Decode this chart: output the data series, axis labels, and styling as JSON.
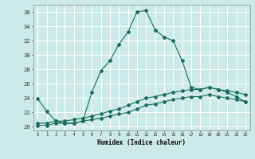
{
  "xlabel": "Humidex (Indice chaleur)",
  "background_color": "#cceae8",
  "grid_color": "#ffffff",
  "line_color": "#1a6b5a",
  "xlim": [
    -0.5,
    23.5
  ],
  "ylim": [
    19.5,
    37.0
  ],
  "yticks": [
    20,
    22,
    24,
    26,
    28,
    30,
    32,
    34,
    36
  ],
  "xticks": [
    0,
    1,
    2,
    3,
    4,
    5,
    6,
    7,
    8,
    9,
    10,
    11,
    12,
    13,
    14,
    15,
    16,
    17,
    18,
    19,
    20,
    21,
    22,
    23
  ],
  "series1_x": [
    0,
    1,
    2,
    3,
    4,
    5,
    6,
    7,
    8,
    9,
    10,
    11,
    12,
    13,
    14,
    15,
    16,
    17,
    18,
    19,
    20,
    21,
    22,
    23
  ],
  "series1_y": [
    23.9,
    22.2,
    20.8,
    20.5,
    20.5,
    20.8,
    24.8,
    27.8,
    29.2,
    31.5,
    33.2,
    36.0,
    36.2,
    33.5,
    32.5,
    32.0,
    29.2,
    25.5,
    25.2,
    25.5,
    25.2,
    24.8,
    24.2,
    23.5
  ],
  "series2_x": [
    0,
    1,
    2,
    3,
    4,
    5,
    6,
    7,
    8,
    9,
    10,
    11,
    12,
    13,
    14,
    15,
    16,
    17,
    18,
    19,
    20,
    21,
    22,
    23
  ],
  "series2_y": [
    20.5,
    20.5,
    20.8,
    20.8,
    21.0,
    21.2,
    21.5,
    21.8,
    22.2,
    22.5,
    23.0,
    23.5,
    24.0,
    24.2,
    24.5,
    24.8,
    25.0,
    25.2,
    25.2,
    25.5,
    25.2,
    25.0,
    24.8,
    24.5
  ],
  "series3_x": [
    0,
    1,
    2,
    3,
    4,
    5,
    6,
    7,
    8,
    9,
    10,
    11,
    12,
    13,
    14,
    15,
    16,
    17,
    18,
    19,
    20,
    21,
    22,
    23
  ],
  "series3_y": [
    20.2,
    20.2,
    20.5,
    20.5,
    20.5,
    20.8,
    21.0,
    21.2,
    21.5,
    21.8,
    22.0,
    22.5,
    23.0,
    23.2,
    23.5,
    23.8,
    24.0,
    24.2,
    24.2,
    24.5,
    24.2,
    24.0,
    23.8,
    23.5
  ]
}
